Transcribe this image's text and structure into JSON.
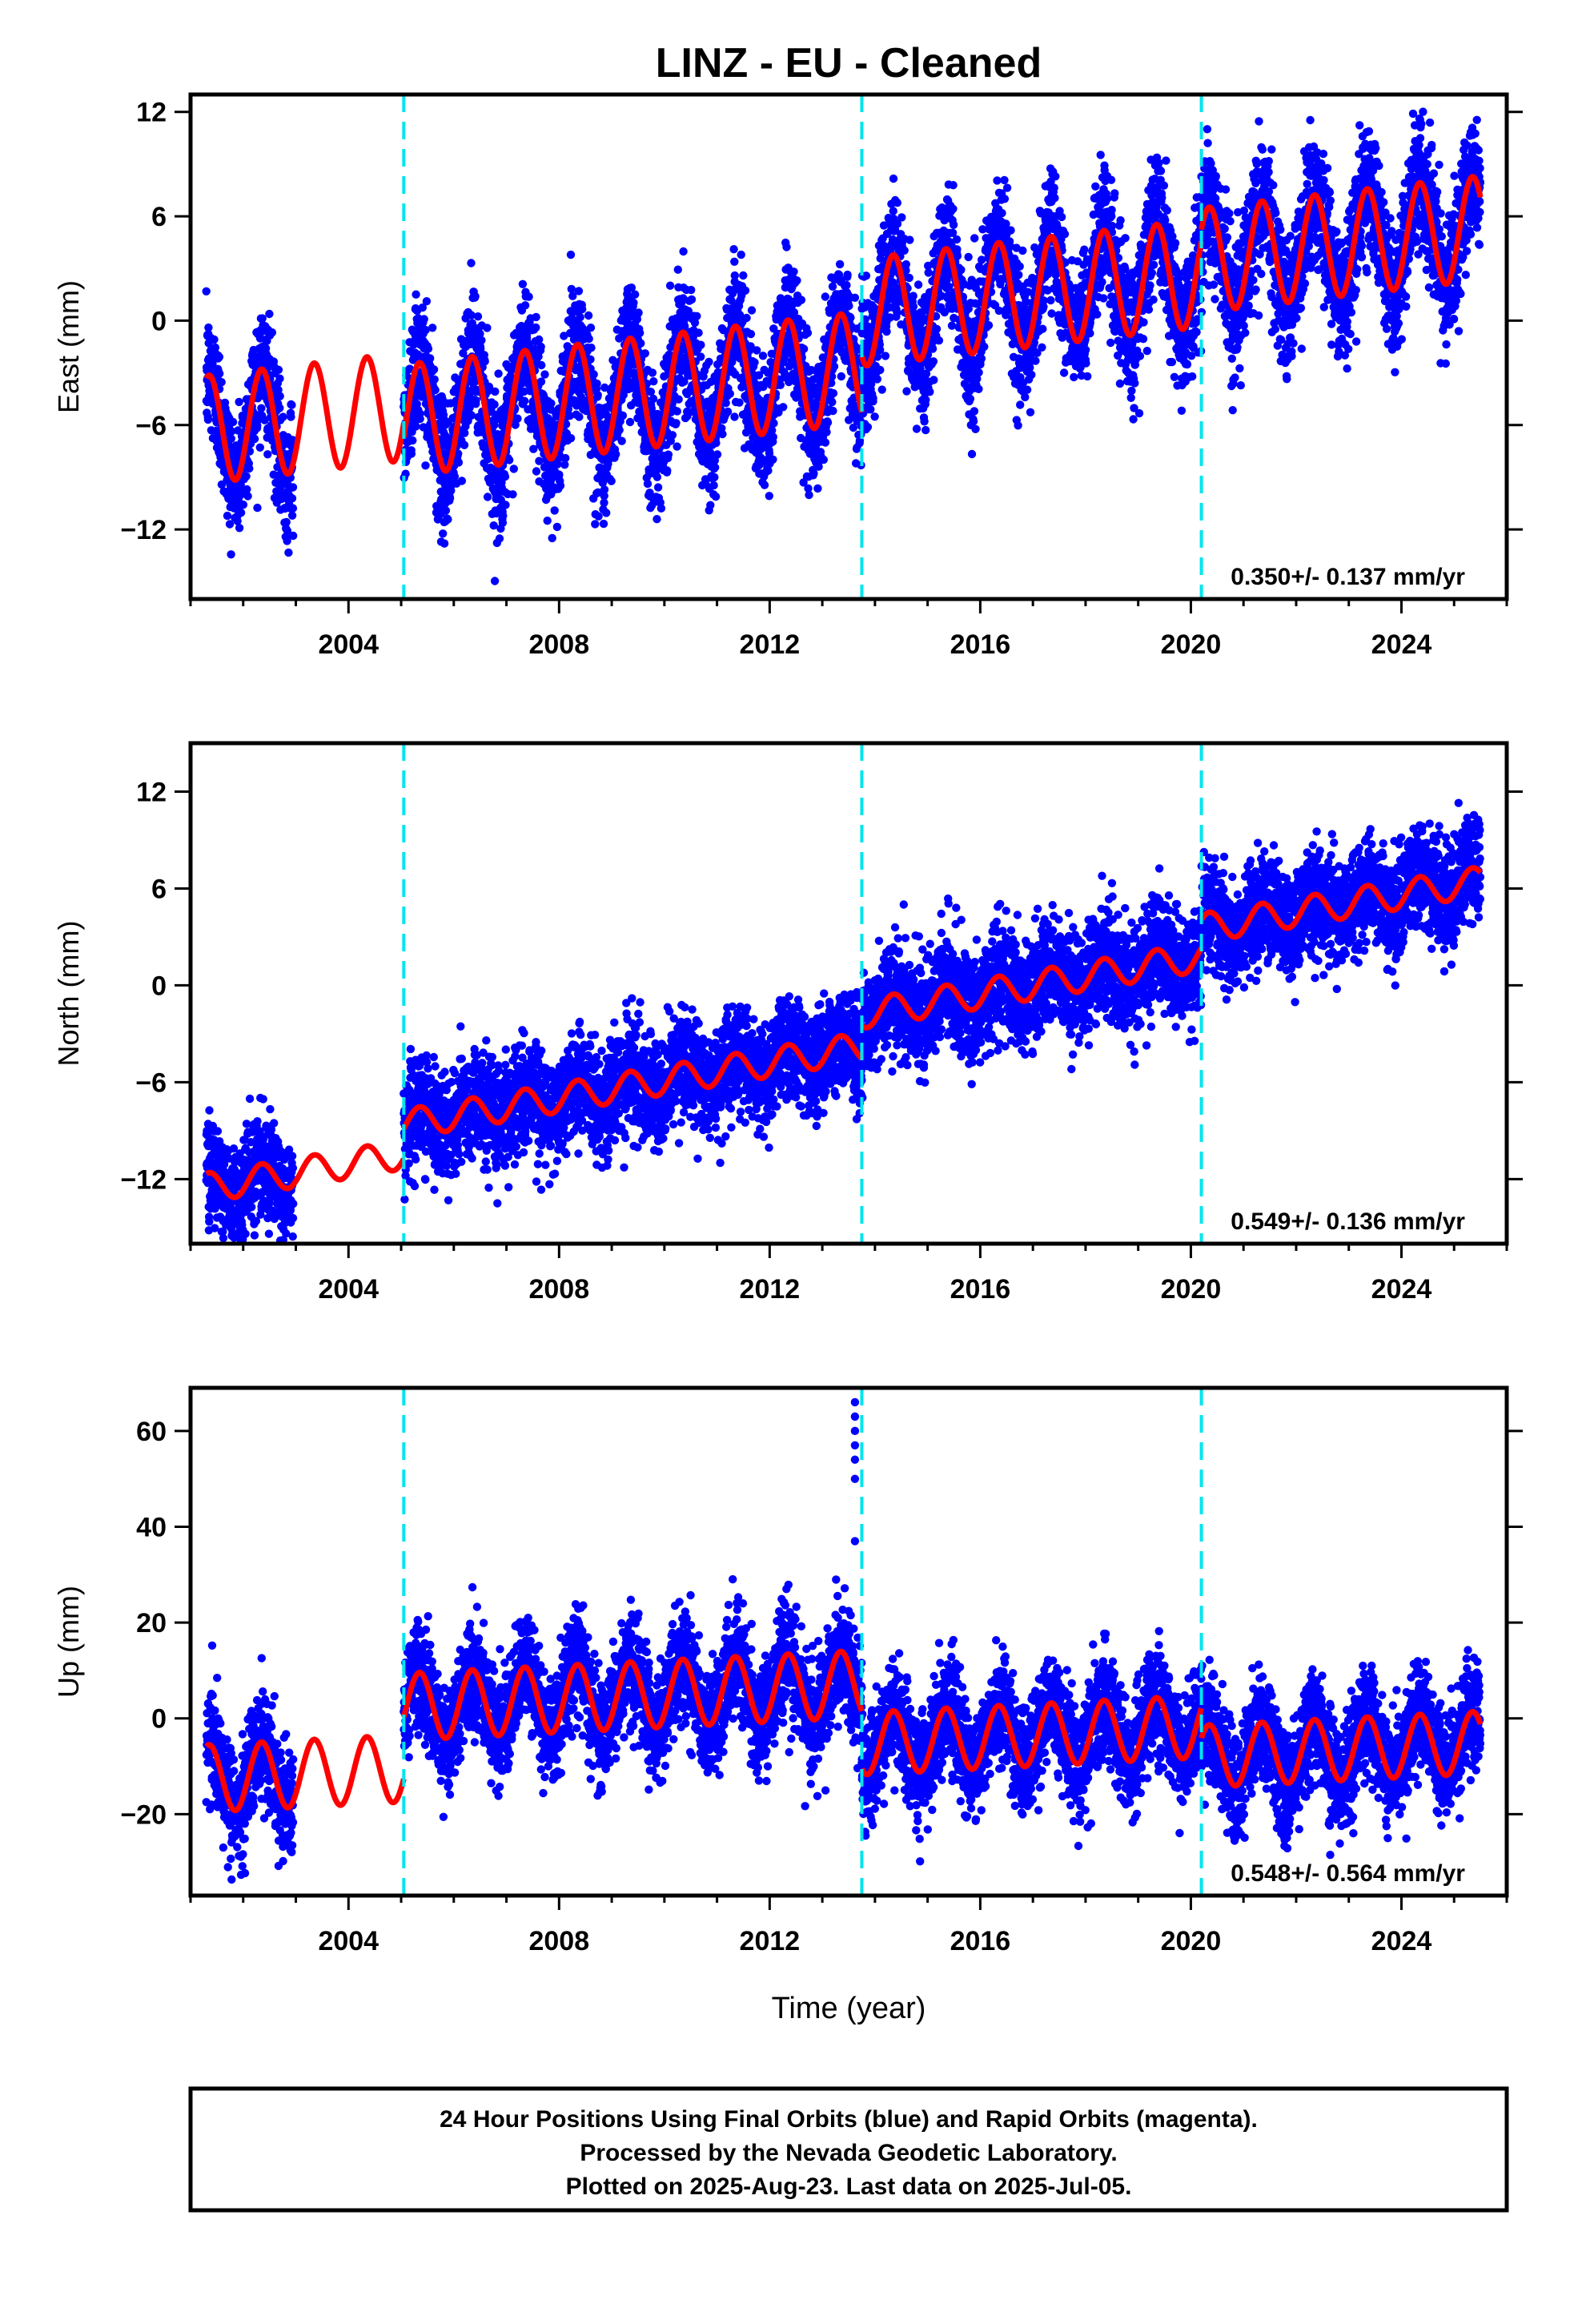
{
  "title": "LINZ  - EU - Cleaned",
  "colors": {
    "final_orbits": "#0000ff",
    "model": "#ff0000",
    "breaks": "#00e5ee",
    "frame": "#000000"
  },
  "chart_data": [
    {
      "type": "scatter",
      "component": "East",
      "ylabel": "East (mm)",
      "xlim": [
        2001.0,
        2026.0
      ],
      "ylim": [
        -16,
        13
      ],
      "yticks": [
        -12,
        -6,
        0,
        6,
        12
      ],
      "xticks": [
        2004,
        2008,
        2012,
        2016,
        2020,
        2024
      ],
      "rate_label": "0.350+/- 0.137 mm/yr",
      "breaks": [
        2005.05,
        2013.75,
        2020.2
      ],
      "segments": [
        {
          "start": 2001.3,
          "end": 2005.05,
          "offset": -5.6,
          "rate": 0.35,
          "amplitude": 3.1,
          "noise": 1.8,
          "data": [
            [
              2001.3,
              2002.95
            ]
          ]
        },
        {
          "start": 2005.05,
          "end": 2013.75,
          "offset": -4.2,
          "rate": 0.35,
          "amplitude": 3.2,
          "noise": 1.8,
          "data": [
            [
              2005.05,
              2013.75
            ]
          ]
        },
        {
          "start": 2013.75,
          "end": 2020.2,
          "offset": 1.6,
          "rate": 0.35,
          "amplitude": 3.1,
          "noise": 1.8,
          "data": [
            [
              2013.75,
              2020.2
            ]
          ]
        },
        {
          "start": 2020.2,
          "end": 2025.5,
          "offset": 4.4,
          "rate": 0.35,
          "amplitude": 3.0,
          "noise": 1.8,
          "data": [
            [
              2020.2,
              2025.5
            ]
          ]
        }
      ]
    },
    {
      "type": "scatter",
      "component": "North",
      "ylabel": "North (mm)",
      "xlim": [
        2001.0,
        2026.0
      ],
      "ylim": [
        -16,
        15
      ],
      "yticks": [
        -12,
        -6,
        0,
        6,
        12
      ],
      "xticks": [
        2004,
        2008,
        2012,
        2016,
        2020,
        2024
      ],
      "rate_label": "0.549+/- 0.136 mm/yr",
      "breaks": [
        2005.05,
        2013.75,
        2020.2
      ],
      "segments": [
        {
          "start": 2001.3,
          "end": 2005.05,
          "offset": -11.5,
          "rate": 0.55,
          "amplitude": 0.9,
          "noise": 1.6,
          "data": [
            [
              2001.3,
              2002.95
            ]
          ]
        },
        {
          "start": 2005.05,
          "end": 2013.75,
          "offset": -6.2,
          "rate": 0.55,
          "amplitude": 0.9,
          "noise": 1.6,
          "data": [
            [
              2005.05,
              2013.75
            ]
          ]
        },
        {
          "start": 2013.75,
          "end": 2020.2,
          "offset": 0.0,
          "rate": 0.55,
          "amplitude": 0.9,
          "noise": 1.6,
          "data": [
            [
              2013.75,
              2020.2
            ]
          ]
        },
        {
          "start": 2020.2,
          "end": 2025.5,
          "offset": 5.0,
          "rate": 0.55,
          "amplitude": 0.9,
          "noise": 1.6,
          "data": [
            [
              2020.2,
              2025.5
            ]
          ]
        }
      ]
    },
    {
      "type": "scatter",
      "component": "Up",
      "ylabel": "Up (mm)",
      "xlabel": "Time (year)",
      "xlim": [
        2001.0,
        2026.0
      ],
      "ylim": [
        -37,
        69
      ],
      "yticks": [
        -20,
        0,
        20,
        40,
        60
      ],
      "xticks": [
        2004,
        2008,
        2012,
        2016,
        2020,
        2024
      ],
      "rate_label": "0.548+/- 0.564 mm/yr",
      "breaks": [
        2005.05,
        2013.75,
        2020.2
      ],
      "segments": [
        {
          "start": 2001.3,
          "end": 2005.05,
          "offset": -11.5,
          "rate": 0.55,
          "amplitude": 7.0,
          "noise": 5.5,
          "data": [
            [
              2001.3,
              2002.95
            ]
          ]
        },
        {
          "start": 2005.05,
          "end": 2013.75,
          "offset": 4.8,
          "rate": 0.55,
          "amplitude": 7.0,
          "noise": 5.5,
          "data": [
            [
              2005.05,
              2013.75
            ]
          ]
        },
        {
          "start": 2013.75,
          "end": 2020.2,
          "offset": -3.5,
          "rate": 0.55,
          "amplitude": 6.5,
          "noise": 5.5,
          "data": [
            [
              2013.75,
              2020.2
            ]
          ]
        },
        {
          "start": 2020.2,
          "end": 2025.5,
          "offset": -6.5,
          "rate": 0.55,
          "amplitude": 6.5,
          "noise": 5.5,
          "data": [
            [
              2020.2,
              2025.5
            ]
          ]
        }
      ],
      "outliers": [
        [
          2013.62,
          66
        ],
        [
          2013.62,
          63
        ],
        [
          2013.62,
          60
        ],
        [
          2013.62,
          57
        ],
        [
          2013.62,
          54
        ],
        [
          2013.62,
          50
        ],
        [
          2013.62,
          37
        ]
      ]
    }
  ],
  "footer": {
    "line1": "24 Hour Positions Using Final Orbits (blue) and Rapid Orbits (magenta).",
    "line2": "Processed by the Nevada Geodetic Laboratory.",
    "line3": "Plotted on 2025-Aug-23. Last data on 2025-Jul-05."
  }
}
